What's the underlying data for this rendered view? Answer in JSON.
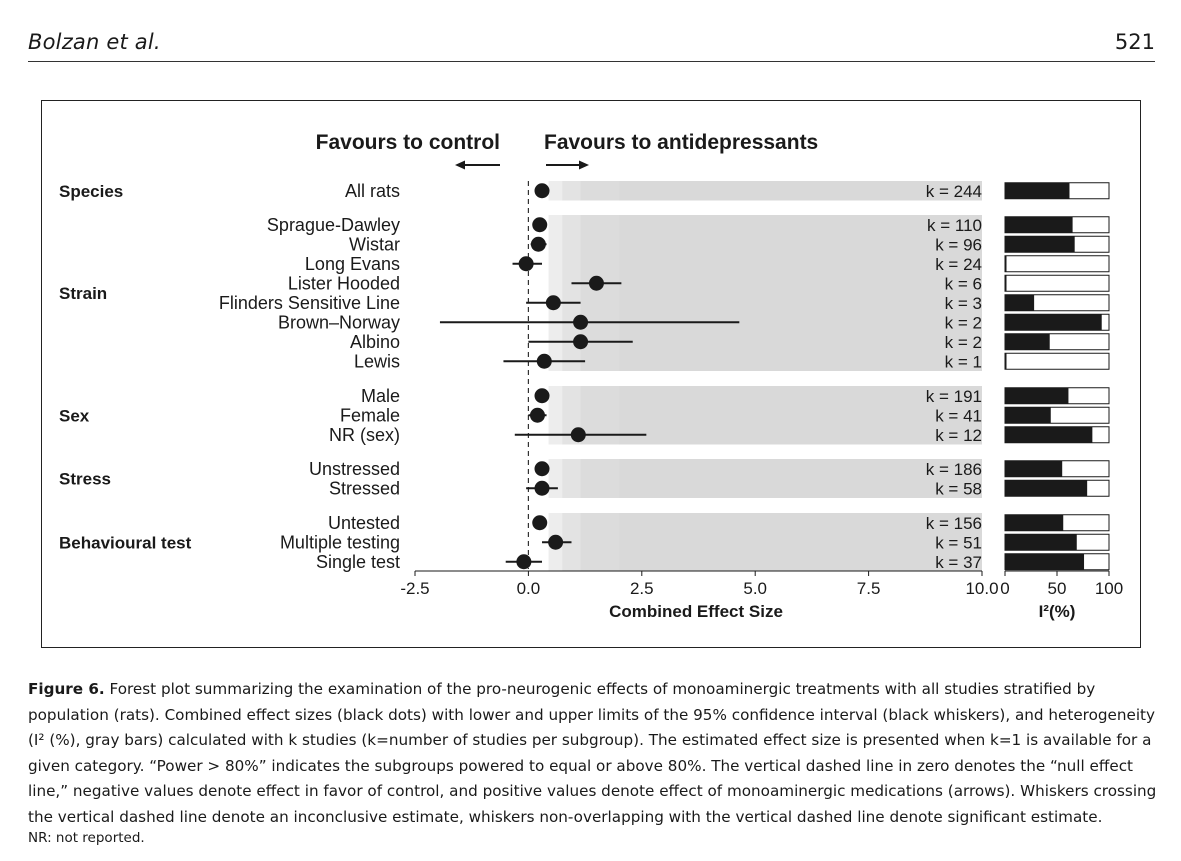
{
  "header": {
    "author": "Bolzan et al.",
    "page_number": "521"
  },
  "caption": {
    "label": "Figure 6.",
    "text": "Forest plot summarizing the examination of the pro-neurogenic effects of monoaminergic treatments with all studies stratified by population (rats). Combined effect sizes (black dots) with lower and upper limits of the 95% confidence interval (black whiskers), and heterogeneity (I² (%), gray bars) calculated with k studies (k=number of studies per subgroup). The estimated effect size is presented when k=1 is available for a given category. “Power > 80%” indicates the subgroups powered to equal or above 80%. The vertical dashed line in zero denotes the “null effect line,” negative values denote effect in favor of control, and positive values denote effect of monoaminergic medications (arrows). Whiskers crossing the vertical dashed line denote an inconclusive estimate, whiskers non-overlapping with the vertical dashed line denote significant estimate.",
    "note": "NR: not reported."
  },
  "chart_data": {
    "type": "forest",
    "direction_labels": {
      "left": "Favours to control",
      "right": "Favours to antidepressants"
    },
    "xlabel": "Combined Effect Size",
    "xlim": [
      -2.5,
      10.0
    ],
    "xticks": [
      "-2.5",
      "0.0",
      "2.5",
      "5.0",
      "7.5",
      "10.0"
    ],
    "null_line": 0,
    "i2_label": "I²(%)",
    "i2_lim": [
      0,
      100
    ],
    "i2_ticks": [
      "0",
      "50",
      "100"
    ],
    "groups": [
      {
        "name": "Species",
        "rows": [
          {
            "label": "All rats",
            "k": "k = 244",
            "est": 0.3,
            "lo": 0.2,
            "hi": 0.4,
            "i2": 62
          }
        ]
      },
      {
        "name": "Strain",
        "rows": [
          {
            "label": "Sprague-Dawley",
            "k": "k = 110",
            "est": 0.25,
            "lo": 0.1,
            "hi": 0.4,
            "i2": 65
          },
          {
            "label": "Wistar",
            "k": "k = 96",
            "est": 0.22,
            "lo": 0.05,
            "hi": 0.4,
            "i2": 67
          },
          {
            "label": "Long Evans",
            "k": "k = 24",
            "est": -0.05,
            "lo": -0.35,
            "hi": 0.3,
            "i2": 0
          },
          {
            "label": "Lister Hooded",
            "k": "k = 6",
            "est": 1.5,
            "lo": 0.95,
            "hi": 2.05,
            "i2": 1
          },
          {
            "label": "Flinders Sensitive Line",
            "k": "k = 3",
            "est": 0.55,
            "lo": -0.05,
            "hi": 1.15,
            "i2": 28
          },
          {
            "label": "Brown–Norway",
            "k": "k = 2",
            "est": 1.15,
            "lo": -1.95,
            "hi": 4.65,
            "i2": 93
          },
          {
            "label": "Albino",
            "k": "k = 2",
            "est": 1.15,
            "lo": 0.0,
            "hi": 2.3,
            "i2": 43
          },
          {
            "label": "Lewis",
            "k": "k = 1",
            "est": 0.35,
            "lo": -0.55,
            "hi": 1.25,
            "i2": 0
          }
        ]
      },
      {
        "name": "Sex",
        "rows": [
          {
            "label": "Male",
            "k": "k = 191",
            "est": 0.3,
            "lo": 0.2,
            "hi": 0.4,
            "i2": 61
          },
          {
            "label": "Female",
            "k": "k = 41",
            "est": 0.2,
            "lo": 0.0,
            "hi": 0.4,
            "i2": 44
          },
          {
            "label": "NR (sex)",
            "k": "k = 12",
            "est": 1.1,
            "lo": -0.3,
            "hi": 2.6,
            "i2": 84
          }
        ]
      },
      {
        "name": "Stress",
        "rows": [
          {
            "label": "Unstressed",
            "k": "k = 186",
            "est": 0.3,
            "lo": 0.2,
            "hi": 0.4,
            "i2": 55
          },
          {
            "label": "Stressed",
            "k": "k = 58",
            "est": 0.3,
            "lo": -0.05,
            "hi": 0.65,
            "i2": 79
          }
        ]
      },
      {
        "name": "Behavioural test",
        "rows": [
          {
            "label": "Untested",
            "k": "k = 156",
            "est": 0.25,
            "lo": 0.15,
            "hi": 0.35,
            "i2": 56
          },
          {
            "label": "Multiple testing",
            "k": "k = 51",
            "est": 0.6,
            "lo": 0.3,
            "hi": 0.95,
            "i2": 69
          },
          {
            "label": "Single test",
            "k": "k = 37",
            "est": -0.1,
            "lo": -0.5,
            "hi": 0.3,
            "i2": 76
          }
        ]
      }
    ]
  }
}
